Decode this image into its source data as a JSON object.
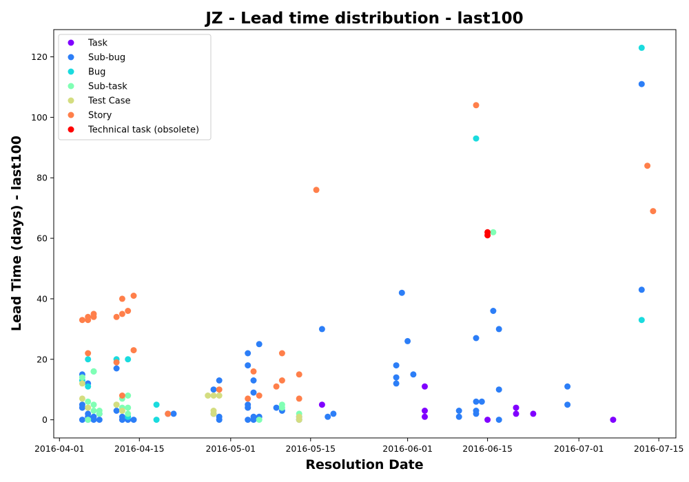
{
  "chart_data": {
    "type": "scatter",
    "title": "JZ - Lead time distribution - last100",
    "xlabel": "Resolution Date",
    "ylabel": "Lead Time (days) - last100",
    "x_ticks": [
      "2016-04-01",
      "2016-04-15",
      "2016-05-01",
      "2016-05-15",
      "2016-06-01",
      "2016-06-15",
      "2016-07-01",
      "2016-07-15"
    ],
    "y_ticks": [
      0,
      20,
      40,
      60,
      80,
      100,
      120
    ],
    "xlim": [
      "2016-03-31",
      "2016-07-18"
    ],
    "ylim": [
      -6,
      129
    ],
    "grid": false,
    "legend_position": "top-left",
    "series": [
      {
        "name": "Task",
        "color": "#8000ff",
        "points": [
          [
            "2016-05-17",
            5
          ],
          [
            "2016-06-04",
            11
          ],
          [
            "2016-06-04",
            3
          ],
          [
            "2016-06-04",
            1
          ],
          [
            "2016-06-15",
            0
          ],
          [
            "2016-06-20",
            4
          ],
          [
            "2016-06-20",
            2
          ],
          [
            "2016-06-23",
            2
          ],
          [
            "2016-07-07",
            0
          ]
        ]
      },
      {
        "name": "Sub-bug",
        "color": "#2c7ef7",
        "points": [
          [
            "2016-04-05",
            15
          ],
          [
            "2016-04-05",
            5
          ],
          [
            "2016-04-05",
            4
          ],
          [
            "2016-04-05",
            0
          ],
          [
            "2016-04-06",
            12
          ],
          [
            "2016-04-06",
            2
          ],
          [
            "2016-04-06",
            1
          ],
          [
            "2016-04-06",
            0
          ],
          [
            "2016-04-07",
            0
          ],
          [
            "2016-04-07",
            1
          ],
          [
            "2016-04-08",
            0
          ],
          [
            "2016-04-08",
            2
          ],
          [
            "2016-04-11",
            17
          ],
          [
            "2016-04-11",
            3
          ],
          [
            "2016-04-12",
            0
          ],
          [
            "2016-04-12",
            1
          ],
          [
            "2016-04-13",
            0
          ],
          [
            "2016-04-14",
            0
          ],
          [
            "2016-04-20",
            2
          ],
          [
            "2016-04-21",
            2
          ],
          [
            "2016-04-28",
            2
          ],
          [
            "2016-04-28",
            10
          ],
          [
            "2016-04-29",
            13
          ],
          [
            "2016-04-29",
            1
          ],
          [
            "2016-04-29",
            0
          ],
          [
            "2016-05-04",
            18
          ],
          [
            "2016-05-04",
            22
          ],
          [
            "2016-05-04",
            4
          ],
          [
            "2016-05-04",
            5
          ],
          [
            "2016-05-04",
            0
          ],
          [
            "2016-05-05",
            13
          ],
          [
            "2016-05-05",
            9
          ],
          [
            "2016-05-05",
            1
          ],
          [
            "2016-05-05",
            0
          ],
          [
            "2016-05-06",
            25
          ],
          [
            "2016-05-06",
            1
          ],
          [
            "2016-05-09",
            4
          ],
          [
            "2016-05-10",
            3
          ],
          [
            "2016-05-13",
            0
          ],
          [
            "2016-05-13",
            1
          ],
          [
            "2016-05-17",
            30
          ],
          [
            "2016-05-18",
            1
          ],
          [
            "2016-05-19",
            2
          ],
          [
            "2016-05-30",
            18
          ],
          [
            "2016-05-30",
            14
          ],
          [
            "2016-05-30",
            12
          ],
          [
            "2016-05-31",
            42
          ],
          [
            "2016-06-01",
            26
          ],
          [
            "2016-06-02",
            15
          ],
          [
            "2016-06-10",
            3
          ],
          [
            "2016-06-10",
            1
          ],
          [
            "2016-06-13",
            27
          ],
          [
            "2016-06-13",
            6
          ],
          [
            "2016-06-13",
            3
          ],
          [
            "2016-06-13",
            2
          ],
          [
            "2016-06-14",
            6
          ],
          [
            "2016-06-16",
            36
          ],
          [
            "2016-06-17",
            30
          ],
          [
            "2016-06-17",
            10
          ],
          [
            "2016-06-17",
            0
          ],
          [
            "2016-06-29",
            11
          ],
          [
            "2016-06-29",
            5
          ],
          [
            "2016-07-12",
            111
          ],
          [
            "2016-07-12",
            43
          ]
        ]
      },
      {
        "name": "Bug",
        "color": "#1adbde",
        "points": [
          [
            "2016-04-05",
            13
          ],
          [
            "2016-04-06",
            20
          ],
          [
            "2016-04-06",
            11
          ],
          [
            "2016-04-07",
            16
          ],
          [
            "2016-04-11",
            20
          ],
          [
            "2016-04-13",
            20
          ],
          [
            "2016-04-13",
            1
          ],
          [
            "2016-04-18",
            5
          ],
          [
            "2016-04-18",
            0
          ],
          [
            "2016-06-13",
            93
          ],
          [
            "2016-07-12",
            123
          ],
          [
            "2016-07-12",
            33
          ]
        ]
      },
      {
        "name": "Sub-task",
        "color": "#80ffb4",
        "points": [
          [
            "2016-04-05",
            14
          ],
          [
            "2016-04-06",
            6
          ],
          [
            "2016-04-06",
            0
          ],
          [
            "2016-04-07",
            16
          ],
          [
            "2016-04-07",
            5
          ],
          [
            "2016-04-07",
            3
          ],
          [
            "2016-04-08",
            3
          ],
          [
            "2016-04-08",
            2
          ],
          [
            "2016-04-11",
            5
          ],
          [
            "2016-04-12",
            7
          ],
          [
            "2016-04-12",
            4
          ],
          [
            "2016-04-12",
            3
          ],
          [
            "2016-04-13",
            8
          ],
          [
            "2016-04-13",
            4
          ],
          [
            "2016-04-13",
            2
          ],
          [
            "2016-05-06",
            0
          ],
          [
            "2016-05-10",
            5
          ],
          [
            "2016-05-10",
            4
          ],
          [
            "2016-05-13",
            2
          ],
          [
            "2016-06-16",
            62
          ]
        ]
      },
      {
        "name": "Test Case",
        "color": "#d4dd80",
        "points": [
          [
            "2016-04-05",
            12
          ],
          [
            "2016-04-05",
            7
          ],
          [
            "2016-04-06",
            4
          ],
          [
            "2016-04-11",
            5
          ],
          [
            "2016-04-12",
            3
          ],
          [
            "2016-04-27",
            8
          ],
          [
            "2016-04-28",
            8
          ],
          [
            "2016-04-28",
            3
          ],
          [
            "2016-04-28",
            2
          ],
          [
            "2016-04-29",
            8
          ],
          [
            "2016-05-13",
            1
          ],
          [
            "2016-05-13",
            0
          ]
        ]
      },
      {
        "name": "Story",
        "color": "#ff7f4a",
        "points": [
          [
            "2016-04-05",
            33
          ],
          [
            "2016-04-06",
            33
          ],
          [
            "2016-04-06",
            34
          ],
          [
            "2016-04-06",
            22
          ],
          [
            "2016-04-07",
            34
          ],
          [
            "2016-04-07",
            35
          ],
          [
            "2016-04-11",
            34
          ],
          [
            "2016-04-11",
            19
          ],
          [
            "2016-04-12",
            40
          ],
          [
            "2016-04-12",
            35
          ],
          [
            "2016-04-12",
            8
          ],
          [
            "2016-04-13",
            36
          ],
          [
            "2016-04-14",
            41
          ],
          [
            "2016-04-14",
            23
          ],
          [
            "2016-04-20",
            2
          ],
          [
            "2016-04-29",
            10
          ],
          [
            "2016-05-04",
            7
          ],
          [
            "2016-05-05",
            16
          ],
          [
            "2016-05-06",
            8
          ],
          [
            "2016-05-09",
            11
          ],
          [
            "2016-05-10",
            22
          ],
          [
            "2016-05-10",
            13
          ],
          [
            "2016-05-13",
            15
          ],
          [
            "2016-05-13",
            7
          ],
          [
            "2016-05-16",
            76
          ],
          [
            "2016-06-13",
            104
          ],
          [
            "2016-07-13",
            84
          ],
          [
            "2016-07-14",
            69
          ]
        ]
      },
      {
        "name": "Technical task (obsolete)",
        "color": "#ff0000",
        "points": [
          [
            "2016-06-15",
            62
          ],
          [
            "2016-06-15",
            61
          ]
        ]
      }
    ]
  }
}
